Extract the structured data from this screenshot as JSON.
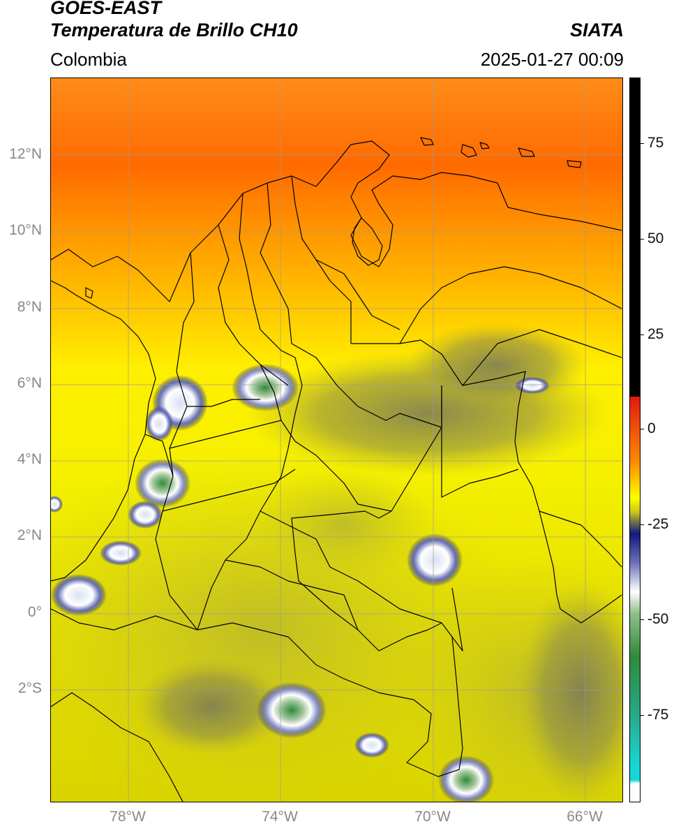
{
  "header": {
    "satellite": "GOES-EAST",
    "product": "Temperatura de Brillo CH10",
    "organization": "SIATA",
    "region": "Colombia",
    "timestamp": "2025-01-27 00:09"
  },
  "map": {
    "lat_labels": [
      "12°N",
      "10°N",
      "8°N",
      "6°N",
      "4°N",
      "2°N",
      "0°",
      "2°S"
    ],
    "lon_labels": [
      "78°W",
      "74°W",
      "70°W",
      "66°W"
    ],
    "gridlines": true
  },
  "colorbar": {
    "labels": [
      "75",
      "50",
      "25",
      "0",
      "-25",
      "-50",
      "-75"
    ],
    "colors": {
      "black": "#000000",
      "red": "#e01a10",
      "orange": "#ff8a00",
      "yellow": "#ffff00",
      "olive": "#c9c61a",
      "gray": "#666655",
      "navy": "#141a7a",
      "white": "#ffffff",
      "green": "#2f8a3a",
      "cyan": "#19d6d6"
    }
  }
}
